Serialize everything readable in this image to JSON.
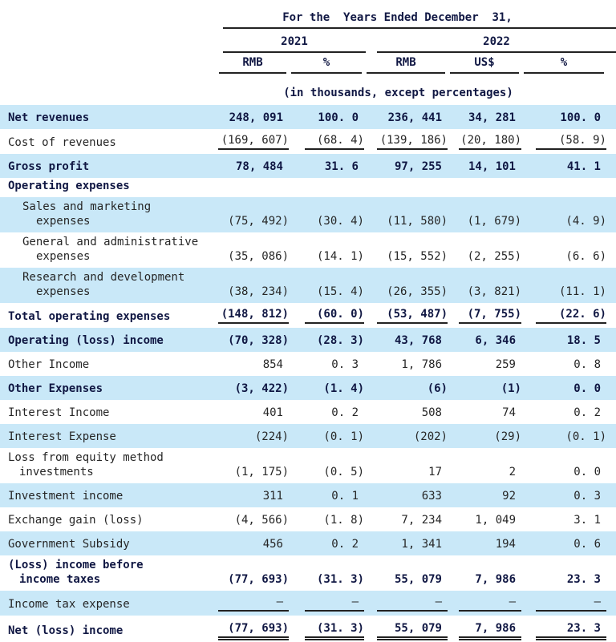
{
  "header": {
    "title": "For the  Years Ended December  31,",
    "year_groups": [
      {
        "label": "2021",
        "columns": 2
      },
      {
        "label": "2022",
        "columns": 3
      }
    ],
    "columns": [
      "RMB",
      "%",
      "RMB",
      "US$",
      "%"
    ],
    "note": "(in thousands, except percentages)"
  },
  "colors": {
    "row_highlight": "#c9e8f8",
    "bold_text": "#101743",
    "regular_text": "#262626",
    "rule": "#222222"
  },
  "rows": [
    {
      "label": [
        "Net revenues"
      ],
      "indents": [
        0
      ],
      "bold": true,
      "blue": true,
      "values": [
        "248, 091",
        "100. 0",
        "236, 441",
        "34, 281",
        "100. 0"
      ]
    },
    {
      "label": [
        "Cost of revenues"
      ],
      "indents": [
        0
      ],
      "bold": false,
      "blue": false,
      "underline": true,
      "values": [
        "(169, 607)",
        "(68. 4)",
        "(139, 186)",
        "(20, 180)",
        "(58. 9)"
      ]
    },
    {
      "label": [
        "Gross profit"
      ],
      "indents": [
        0
      ],
      "bold": true,
      "blue": true,
      "values": [
        "78, 484",
        "31. 6",
        "97, 255",
        "14, 101",
        "41. 1"
      ]
    },
    {
      "label": [
        "Operating expenses"
      ],
      "indents": [
        0
      ],
      "bold": true,
      "blue": false,
      "section": true,
      "values": null
    },
    {
      "label": [
        "Sales and marketing",
        "expenses"
      ],
      "indents": [
        1,
        3
      ],
      "bold": false,
      "blue": true,
      "values": [
        "(75, 492)",
        "(30. 4)",
        "(11, 580)",
        "(1, 679)",
        "(4. 9)"
      ]
    },
    {
      "label": [
        "General and administrative",
        "expenses"
      ],
      "indents": [
        1,
        3
      ],
      "bold": false,
      "blue": false,
      "values": [
        "(35, 086)",
        "(14. 1)",
        "(15, 552)",
        "(2, 255)",
        "(6. 6)"
      ]
    },
    {
      "label": [
        "Research and development",
        "expenses"
      ],
      "indents": [
        1,
        3
      ],
      "bold": false,
      "blue": true,
      "values": [
        "(38, 234)",
        "(15. 4)",
        "(26, 355)",
        "(3, 821)",
        "(11. 1)"
      ]
    },
    {
      "label": [
        "Total operating expenses"
      ],
      "indents": [
        0
      ],
      "bold": true,
      "blue": false,
      "underline": true,
      "values": [
        "(148, 812)",
        "(60. 0)",
        "(53, 487)",
        "(7, 755)",
        "(22. 6)"
      ]
    },
    {
      "label": [
        "Operating (loss) income"
      ],
      "indents": [
        0
      ],
      "bold": true,
      "blue": true,
      "values": [
        "(70, 328)",
        "(28. 3)",
        "43, 768",
        "6, 346",
        "18. 5"
      ]
    },
    {
      "label": [
        "Other Income"
      ],
      "indents": [
        0
      ],
      "bold": false,
      "blue": false,
      "values": [
        "854",
        "0. 3",
        "1, 786",
        "259",
        "0. 8"
      ]
    },
    {
      "label": [
        "Other Expenses"
      ],
      "indents": [
        0
      ],
      "bold": true,
      "blue": true,
      "values": [
        "(3, 422)",
        "(1. 4)",
        "(6)",
        "(1)",
        "0. 0"
      ]
    },
    {
      "label": [
        "Interest Income"
      ],
      "indents": [
        0
      ],
      "bold": false,
      "blue": false,
      "values": [
        "401",
        "0. 2",
        "508",
        "74",
        "0. 2"
      ]
    },
    {
      "label": [
        "Interest Expense"
      ],
      "indents": [
        0
      ],
      "bold": false,
      "blue": true,
      "values": [
        "(224)",
        "(0. 1)",
        "(202)",
        "(29)",
        "(0. 1)"
      ]
    },
    {
      "label": [
        "Loss from equity method",
        "investments"
      ],
      "indents": [
        0,
        2
      ],
      "bold": false,
      "blue": false,
      "values": [
        "(1, 175)",
        "(0. 5)",
        "17",
        "2",
        "0. 0"
      ]
    },
    {
      "label": [
        "Investment income"
      ],
      "indents": [
        0
      ],
      "bold": false,
      "blue": true,
      "values": [
        "311",
        "0. 1",
        "633",
        "92",
        "0. 3"
      ]
    },
    {
      "label": [
        "Exchange gain (loss)"
      ],
      "indents": [
        0
      ],
      "bold": false,
      "blue": false,
      "values": [
        "(4, 566)",
        "(1. 8)",
        "7, 234",
        "1, 049",
        "3. 1"
      ]
    },
    {
      "label": [
        "Government Subsidy"
      ],
      "indents": [
        0
      ],
      "bold": false,
      "blue": true,
      "values": [
        "456",
        "0. 2",
        "1, 341",
        "194",
        "0. 6"
      ]
    },
    {
      "label": [
        "(Loss) income before",
        "income taxes"
      ],
      "indents": [
        0,
        2
      ],
      "bold": true,
      "blue": false,
      "values": [
        "(77, 693)",
        "(31. 3)",
        "55, 079",
        "7, 986",
        "23. 3"
      ]
    },
    {
      "label": [
        "Income tax expense"
      ],
      "indents": [
        0
      ],
      "bold": false,
      "blue": true,
      "underline": true,
      "values": [
        "—",
        "—",
        "—",
        "—",
        "—"
      ]
    },
    {
      "label": [
        "Net (loss) income"
      ],
      "indents": [
        0
      ],
      "bold": true,
      "blue": false,
      "double_underline": true,
      "values": [
        "(77, 693)",
        "(31. 3)",
        "55, 079",
        "7, 986",
        "23. 3"
      ]
    }
  ]
}
